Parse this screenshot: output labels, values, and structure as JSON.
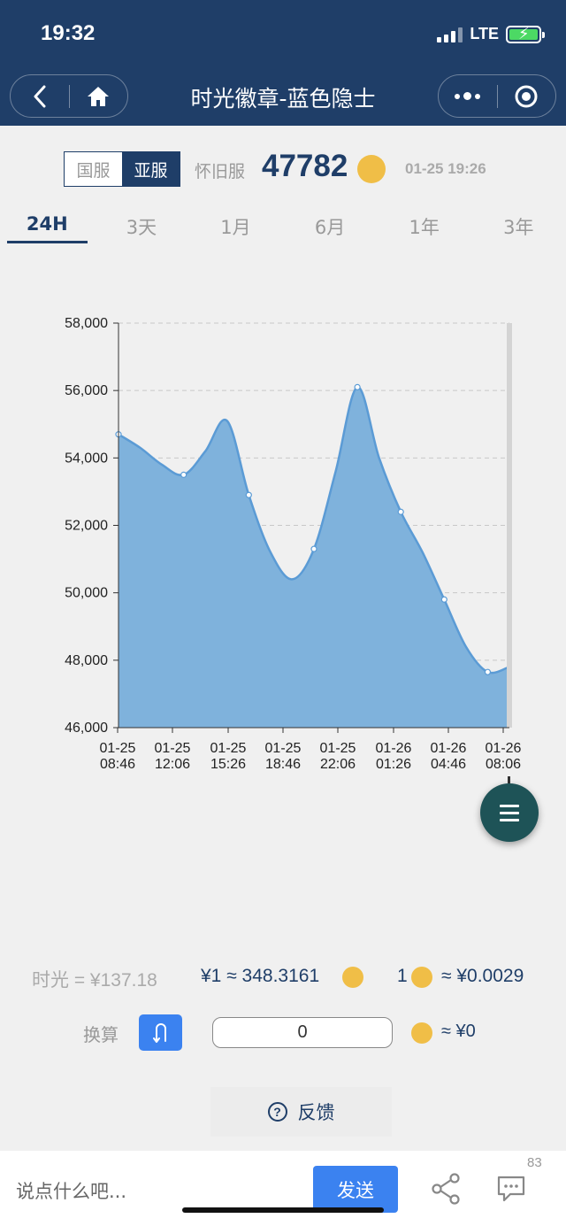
{
  "status": {
    "time": "19:32",
    "network": "LTE"
  },
  "nav": {
    "title": "时光徽章-蓝色隐士"
  },
  "server": {
    "options": [
      "国服",
      "亚服"
    ],
    "selected": "亚服",
    "label": "怀旧服",
    "price": "47782",
    "updated": "01-25 19:26"
  },
  "tabs": [
    "24H",
    "3天",
    "1月",
    "6月",
    "1年",
    "3年"
  ],
  "active_tab": "24H",
  "chart_data": {
    "type": "area",
    "title": "",
    "xlabel": "",
    "ylabel": "",
    "ylim": [
      46000,
      58000
    ],
    "yticks": [
      "58,000",
      "56,000",
      "54,000",
      "52,000",
      "50,000",
      "48,000",
      "46,000"
    ],
    "xticks": [
      [
        "01-25",
        "08:46"
      ],
      [
        "01-25",
        "12:06"
      ],
      [
        "01-25",
        "15:26"
      ],
      [
        "01-25",
        "18:46"
      ],
      [
        "01-25",
        "22:06"
      ],
      [
        "01-26",
        "01:26"
      ],
      [
        "01-26",
        "04:46"
      ],
      [
        "01-26",
        "08:06"
      ]
    ],
    "grid": true,
    "color": "#5b9bd5",
    "fill": "#7fb2dc",
    "series": [
      {
        "values": [
          54700,
          54300,
          53800,
          53500,
          54200,
          55100,
          52900,
          51200,
          50400,
          51300,
          53600,
          56100,
          54000,
          52400,
          51200,
          49800,
          48400,
          47650,
          47800
        ]
      }
    ]
  },
  "rates": {
    "shiguang": "时光 = ¥137.18",
    "yuan_to_coin": "¥1 ≈ 348.3161",
    "coin_one": "1",
    "coin_to_yuan": "≈ ¥0.0029"
  },
  "convert": {
    "label": "换算",
    "button_icon": "swap-icon",
    "input_value": "0",
    "result": "≈ ¥0"
  },
  "feedback": {
    "label": "反馈"
  },
  "bottom": {
    "comment_placeholder": "说点什么吧...",
    "send_label": "发送",
    "comment_count": "83"
  },
  "colors": {
    "header": "#1f3e68",
    "accent": "#3b82f0",
    "coin": "#f0be47"
  }
}
